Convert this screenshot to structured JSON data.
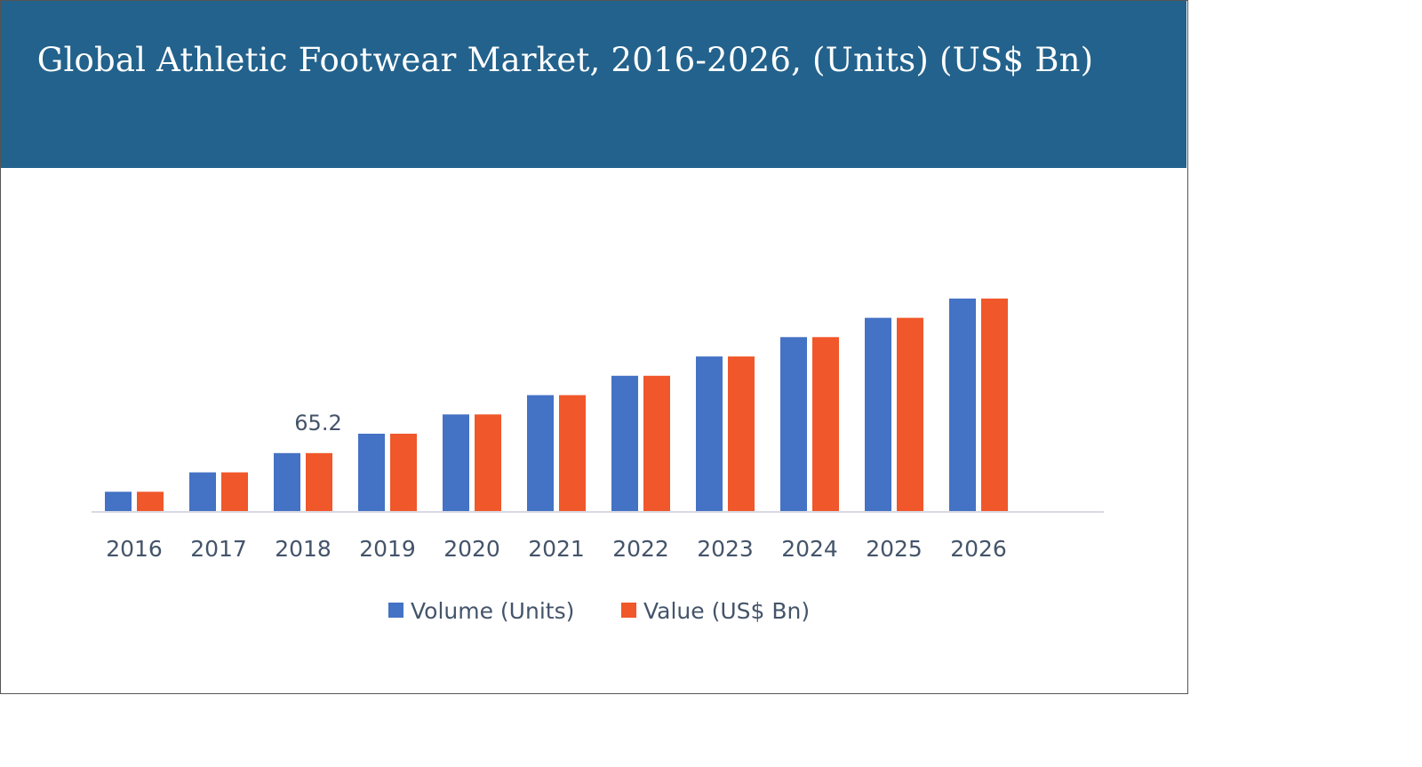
{
  "chart_data": {
    "type": "bar",
    "title": "Global Athletic Footwear Market, 2016-2026, (Units) (US$ Bn)",
    "xlabel": "",
    "ylabel": "",
    "categories": [
      "2016",
      "2017",
      "2018",
      "2019",
      "2020",
      "2021",
      "2022",
      "2023",
      "2024",
      "2025",
      "2026"
    ],
    "series": [
      {
        "name": "Volume (Units)",
        "color": "#4472c4",
        "values": [
          21.7,
          43.5,
          65.2,
          87.0,
          108.7,
          130.4,
          152.2,
          173.9,
          195.7,
          217.4,
          239.1
        ]
      },
      {
        "name": "Value (US$ Bn)",
        "color": "#f0572a",
        "values": [
          21.7,
          43.5,
          65.2,
          87.0,
          108.7,
          130.4,
          152.2,
          173.9,
          195.7,
          217.4,
          239.1
        ]
      }
    ],
    "data_labels": [
      {
        "series": 0,
        "category": "2018",
        "text": "65.2"
      }
    ],
    "ylim": [
      0,
      260
    ],
    "grid": false,
    "legend": "bottom",
    "colors": {
      "header_background": "#23628c",
      "title_text": "#ffffff",
      "axis_line": "#d9d9e3",
      "label_text": "#44546a"
    }
  }
}
